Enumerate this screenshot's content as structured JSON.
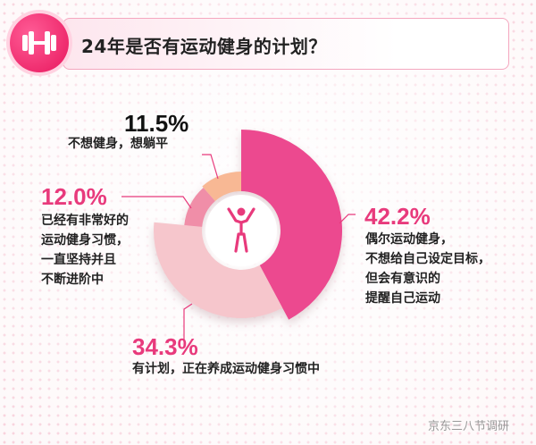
{
  "header": {
    "title": "24年是否有运动健身的计划？"
  },
  "icons": {
    "header_icon": "dumbbell-icon",
    "center_icon": "person-exercising-icon"
  },
  "colors": {
    "s1": "#ec4a8f",
    "s2": "#f6c6cc",
    "s3": "#f08ea8",
    "s4": "#f8b894",
    "accent": "#e83a7c"
  },
  "chart_data": {
    "type": "pie",
    "title": "24年是否有运动健身的计划？",
    "slices": [
      {
        "value": 42.2,
        "value_label": "42.2%",
        "label": "偶尔运动健身，\n不想给自己设定目标，\n但会有意识的\n提醒自己运动"
      },
      {
        "value": 34.3,
        "value_label": "34.3%",
        "label": "有计划，正在养成运动健身习惯中"
      },
      {
        "value": 12.0,
        "value_label": "12.0%",
        "label": "已经有非常好的\n运动健身习惯，\n一直坚持并且\n不断进阶中"
      },
      {
        "value": 11.5,
        "value_label": "11.5%",
        "label": "不想健身，想躺平"
      }
    ]
  },
  "source": "京东三八节调研"
}
